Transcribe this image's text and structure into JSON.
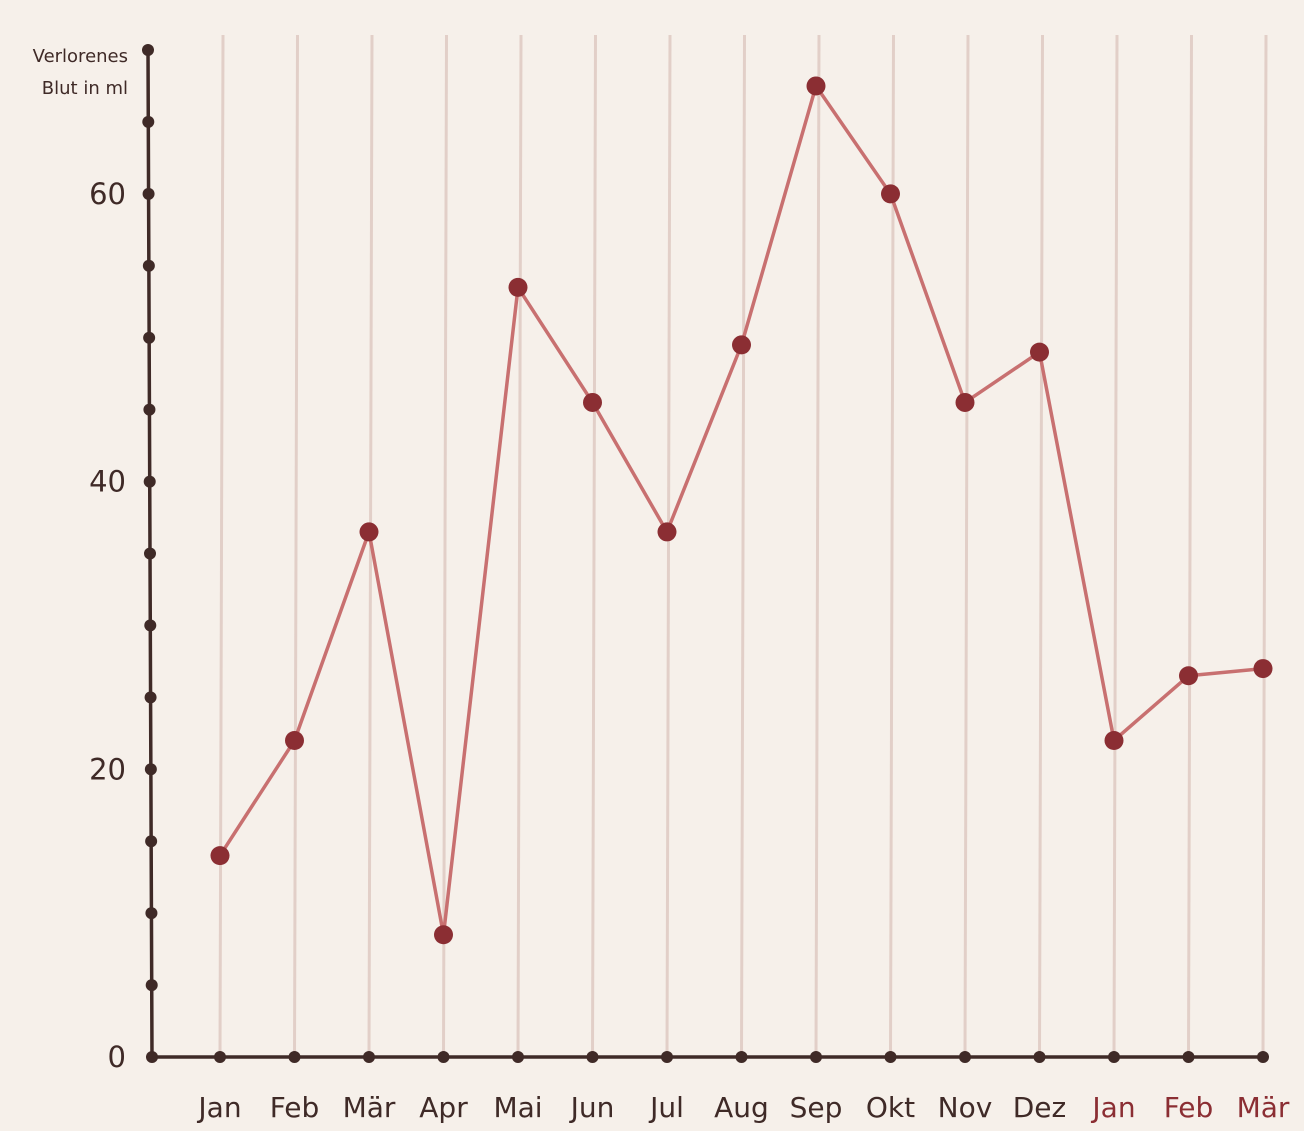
{
  "chart_data": {
    "type": "line",
    "ylabel_lines": [
      "Verlorenes",
      "Blut in ml"
    ],
    "categories": [
      "Jan",
      "Feb",
      "Mär",
      "Apr",
      "Mai",
      "Jun",
      "Jul",
      "Aug",
      "Sep",
      "Okt",
      "Nov",
      "Dez",
      "Jan",
      "Feb",
      "Mär"
    ],
    "highlight_from_index": 12,
    "series": [
      {
        "values": [
          14,
          22,
          36.5,
          8.5,
          53.5,
          45.5,
          36.5,
          49.5,
          67.5,
          60,
          45.5,
          49,
          22,
          26.5,
          27
        ]
      }
    ],
    "ylim": [
      0,
      70
    ],
    "yticks": [
      0,
      20,
      40,
      60
    ],
    "grid": "vertical",
    "colors": {
      "background": "#f6f0ea",
      "axis": "#3f2a27",
      "line": "#c87070",
      "marker": "#8b2e33",
      "gridline": "#e2cfc8",
      "label": "#3f2a27",
      "highlight_label": "#8b2e33"
    }
  }
}
